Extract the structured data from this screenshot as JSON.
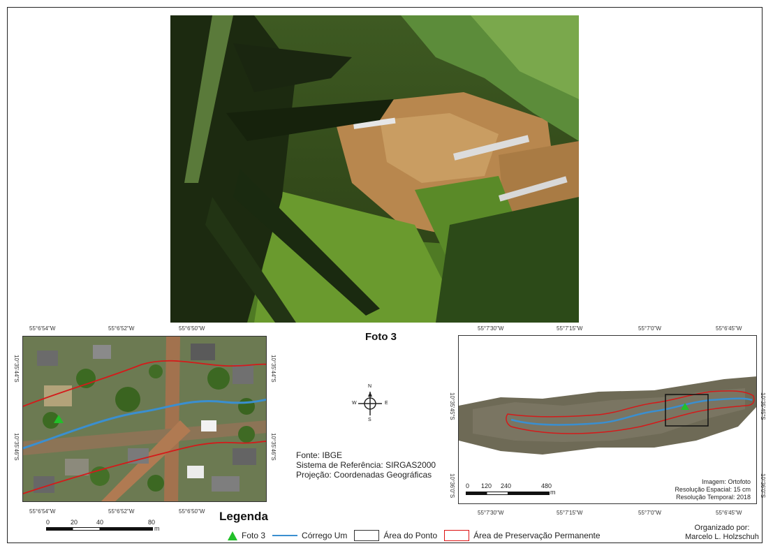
{
  "caption": "Foto 3",
  "left_map": {
    "top_ticks": [
      "55°6'54\"W",
      "55°6'52\"W",
      "55°6'50\"W"
    ],
    "bottom_ticks": [
      "55°6'54\"W",
      "55°6'52\"W",
      "55°6'50\"W"
    ],
    "left_ticks": [
      "10°35'44\"S",
      "10°35'46\"S"
    ],
    "right_ticks": [
      "10°35'44\"S",
      "10°35'46\"S"
    ],
    "scale_labels": [
      "0",
      "20",
      "40",
      "80"
    ],
    "scale_unit": "m"
  },
  "right_map": {
    "top_ticks": [
      "55°7'30\"W",
      "55°7'15\"W",
      "55°7'0\"W",
      "55°6'45\"W"
    ],
    "bottom_ticks": [
      "55°7'30\"W",
      "55°7'15\"W",
      "55°7'0\"W",
      "55°6'45\"W"
    ],
    "left_ticks": [
      "10°35'45\"S",
      "10°36'0\"S"
    ],
    "right_ticks": [
      "10°35'45\"S",
      "10°36'0\"S"
    ],
    "scale_labels": [
      "0",
      "120",
      "240",
      "480"
    ],
    "scale_unit": "m",
    "image_info": [
      "Imagem: Ortofoto",
      "Resolução Espacial: 15 cm",
      "Resolução Temporal: 2018"
    ]
  },
  "north_arrow": {
    "n": "N",
    "s": "S",
    "e": "E",
    "w": "W"
  },
  "source_info": [
    "Fonte: IBGE",
    "Sistema de Referência: SIRGAS2000",
    "Projeção: Coordenadas Geográficas"
  ],
  "legend": {
    "title": "Legenda",
    "items": [
      {
        "label": "Foto 3",
        "symbol": "green-triangle"
      },
      {
        "label": "Córrego Um",
        "symbol": "blue-line"
      },
      {
        "label": "Área do Ponto",
        "symbol": "black-box"
      },
      {
        "label": "Área de Preservação Permanente",
        "symbol": "red-box"
      }
    ]
  },
  "organizer": [
    "Organizado por:",
    "Marcelo L. Holzschuh"
  ],
  "colors": {
    "stream": "#3a8fd0",
    "app": "#d41a1a",
    "marker": "#22c02a"
  }
}
